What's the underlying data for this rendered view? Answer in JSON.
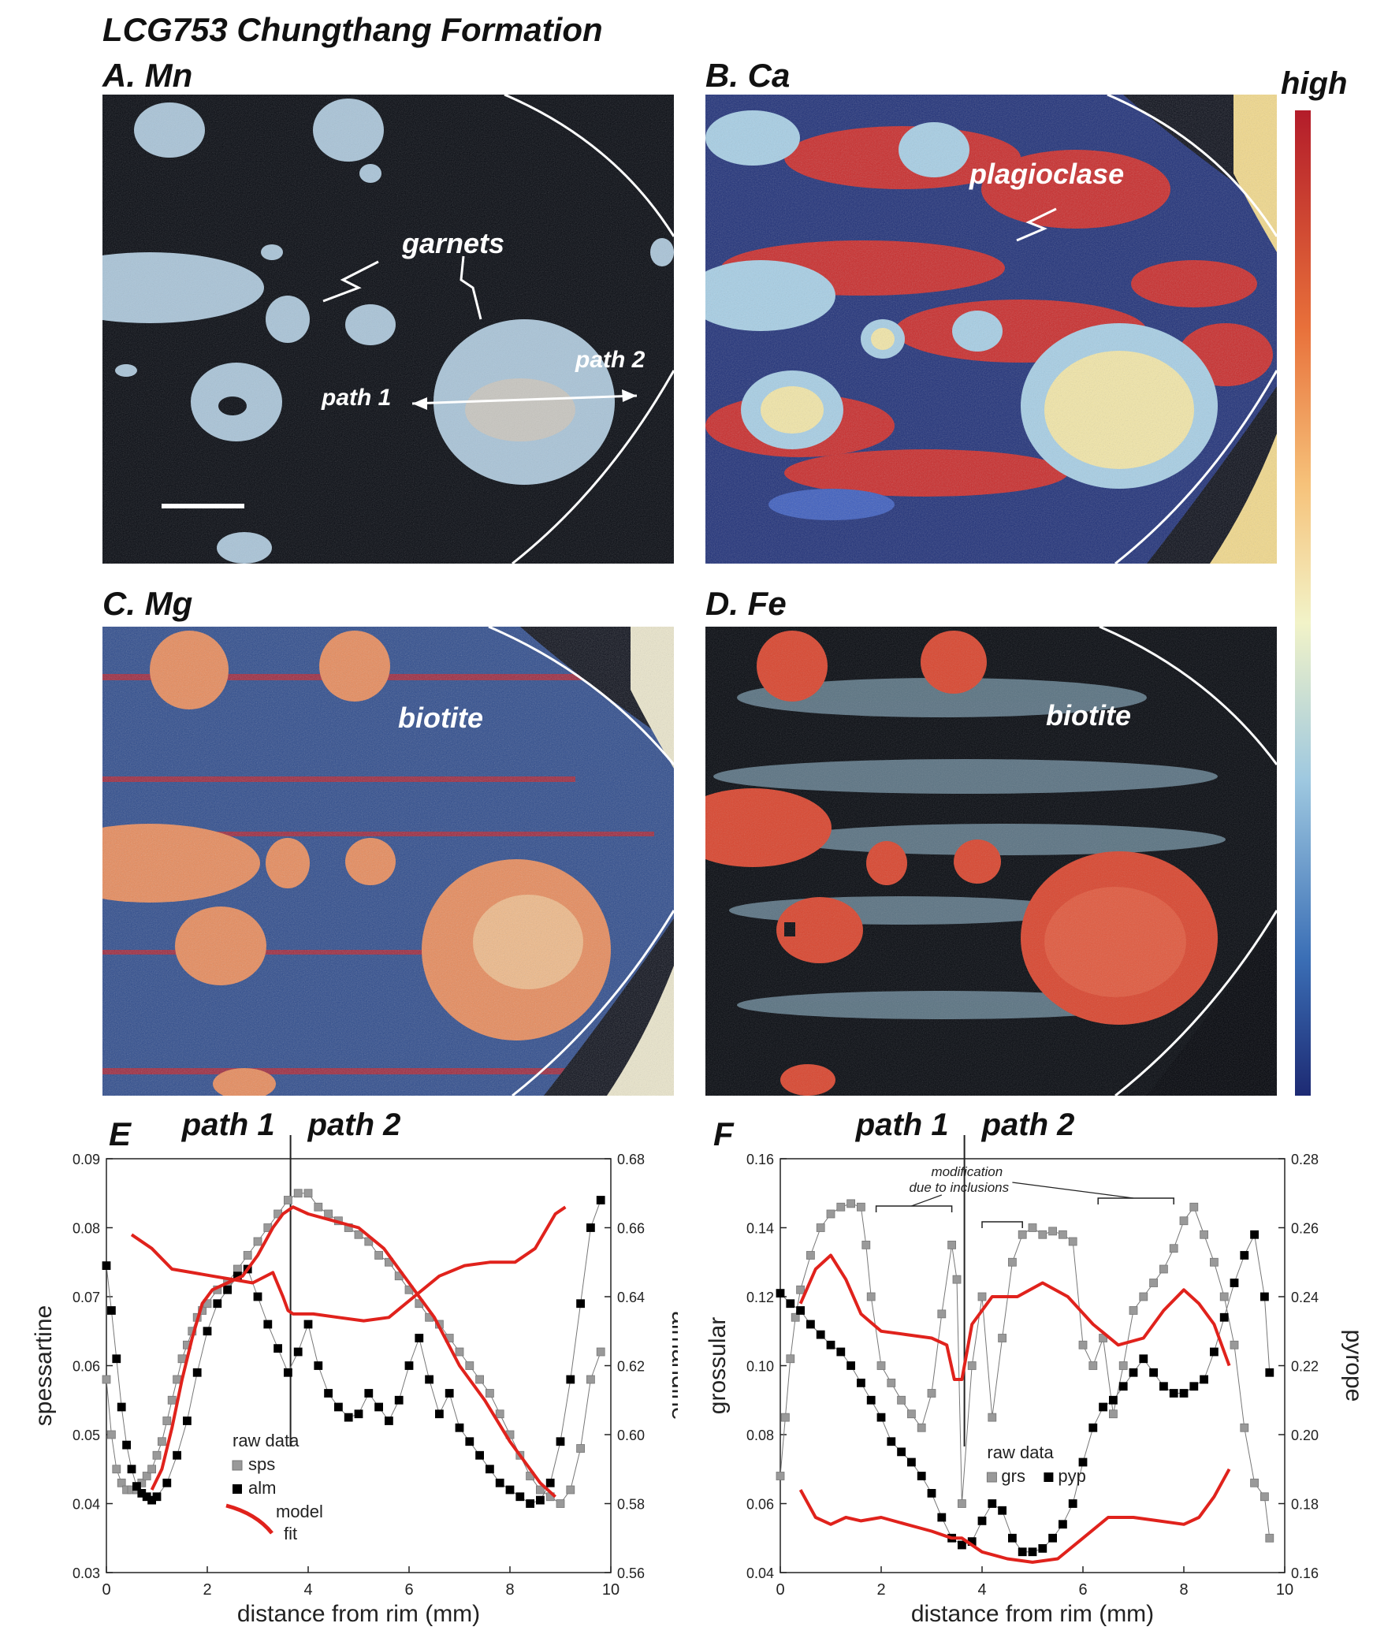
{
  "figure_title": "LCG753 Chungthang Formation",
  "panels": {
    "A": {
      "label": "A. Mn",
      "annotations": [
        "garnets",
        "path 1",
        "path 2"
      ]
    },
    "B": {
      "label": "B. Ca",
      "annotations": [
        "plagioclase"
      ]
    },
    "C": {
      "label": "C.  Mg",
      "annotations": [
        "biotite"
      ]
    },
    "D": {
      "label": "D. Fe",
      "annotations": [
        "biotite"
      ]
    },
    "E": {
      "label": "E"
    },
    "F": {
      "label": "F"
    }
  },
  "colorbar": {
    "label": "high",
    "colors": [
      "#1d2a73",
      "#3b6fb6",
      "#9ec8e0",
      "#f2f3c8",
      "#f6c27a",
      "#e8703a",
      "#b31c2a"
    ]
  },
  "colors": {
    "map_dark": "#05080f",
    "map_blue": "#2c4a8c",
    "garnet_light": "#a9c4d8",
    "garnet_red": "#d9452e",
    "model_fit": "#e0221c",
    "sps": "#999999",
    "alm": "#000000"
  },
  "chart_data": [
    {
      "type": "scatter",
      "panel": "E",
      "path_labels": [
        "path 1",
        "path 2"
      ],
      "path_divider_x": 3.65,
      "xlabel": "distance from rim (mm)",
      "ylabel": "spessartine",
      "y2label": "almandine",
      "xlim": [
        0,
        10
      ],
      "ylim": [
        0.03,
        0.09
      ],
      "y2lim": [
        0.56,
        0.68
      ],
      "xticks": [
        "0",
        "2",
        "4",
        "6",
        "8",
        "10"
      ],
      "yticks": [
        "0.03",
        "0.04",
        "0.05",
        "0.06",
        "0.07",
        "0.08",
        "0.09"
      ],
      "y2ticks": [
        "0.56",
        "0.58",
        "0.60",
        "0.62",
        "0.64",
        "0.66",
        "0.68"
      ],
      "legend": {
        "title": "raw data",
        "entries": [
          "sps",
          "alm"
        ],
        "model": [
          "model",
          "fit"
        ]
      },
      "series": [
        {
          "name": "sps",
          "axis": "left",
          "marker": "square",
          "color": "#999999",
          "x": [
            0.0,
            0.1,
            0.2,
            0.3,
            0.4,
            0.5,
            0.6,
            0.7,
            0.8,
            0.9,
            1.0,
            1.1,
            1.2,
            1.3,
            1.4,
            1.5,
            1.6,
            1.7,
            1.8,
            1.9,
            2.0,
            2.2,
            2.4,
            2.6,
            2.8,
            3.0,
            3.2,
            3.4,
            3.6,
            3.8,
            4.0,
            4.2,
            4.4,
            4.6,
            4.8,
            5.0,
            5.2,
            5.4,
            5.6,
            5.8,
            6.0,
            6.2,
            6.4,
            6.6,
            6.8,
            7.0,
            7.2,
            7.4,
            7.6,
            7.8,
            8.0,
            8.2,
            8.4,
            8.6,
            8.8,
            9.0,
            9.2,
            9.4,
            9.6,
            9.8
          ],
          "y": [
            0.058,
            0.05,
            0.045,
            0.043,
            0.042,
            0.042,
            0.042,
            0.043,
            0.044,
            0.045,
            0.047,
            0.049,
            0.052,
            0.055,
            0.058,
            0.061,
            0.063,
            0.065,
            0.067,
            0.068,
            0.069,
            0.071,
            0.072,
            0.074,
            0.076,
            0.078,
            0.08,
            0.082,
            0.084,
            0.085,
            0.085,
            0.083,
            0.082,
            0.081,
            0.08,
            0.079,
            0.078,
            0.076,
            0.075,
            0.073,
            0.071,
            0.069,
            0.067,
            0.066,
            0.064,
            0.062,
            0.06,
            0.058,
            0.056,
            0.053,
            0.05,
            0.047,
            0.044,
            0.042,
            0.041,
            0.04,
            0.042,
            0.048,
            0.058,
            0.062
          ]
        },
        {
          "name": "alm",
          "axis": "right",
          "marker": "square",
          "color": "#000000",
          "x": [
            0.0,
            0.1,
            0.2,
            0.3,
            0.4,
            0.5,
            0.6,
            0.7,
            0.8,
            0.9,
            1.0,
            1.2,
            1.4,
            1.6,
            1.8,
            2.0,
            2.2,
            2.4,
            2.6,
            2.8,
            3.0,
            3.2,
            3.4,
            3.6,
            3.8,
            4.0,
            4.2,
            4.4,
            4.6,
            4.8,
            5.0,
            5.2,
            5.4,
            5.6,
            5.8,
            6.0,
            6.2,
            6.4,
            6.6,
            6.8,
            7.0,
            7.2,
            7.4,
            7.6,
            7.8,
            8.0,
            8.2,
            8.4,
            8.6,
            8.8,
            9.0,
            9.2,
            9.4,
            9.6,
            9.8
          ],
          "y": [
            0.649,
            0.636,
            0.622,
            0.608,
            0.597,
            0.59,
            0.585,
            0.583,
            0.582,
            0.581,
            0.582,
            0.586,
            0.594,
            0.604,
            0.618,
            0.63,
            0.638,
            0.642,
            0.646,
            0.648,
            0.64,
            0.632,
            0.625,
            0.618,
            0.624,
            0.632,
            0.62,
            0.612,
            0.608,
            0.605,
            0.606,
            0.612,
            0.608,
            0.604,
            0.61,
            0.62,
            0.628,
            0.616,
            0.606,
            0.612,
            0.602,
            0.598,
            0.594,
            0.59,
            0.586,
            0.584,
            0.582,
            0.58,
            0.581,
            0.586,
            0.598,
            0.616,
            0.638,
            0.66,
            0.668
          ]
        },
        {
          "name": "model fit sps",
          "axis": "left",
          "type": "line",
          "color": "#e0221c",
          "x": [
            0.9,
            1.1,
            1.3,
            1.5,
            1.7,
            1.9,
            2.1,
            2.4,
            2.7,
            3.0,
            3.3,
            3.5,
            3.7,
            4.0,
            4.5,
            5.0,
            5.5,
            6.0,
            6.5,
            7.0,
            7.5,
            8.0,
            8.3,
            8.6,
            8.9
          ],
          "y": [
            0.042,
            0.045,
            0.051,
            0.058,
            0.064,
            0.069,
            0.071,
            0.072,
            0.073,
            0.076,
            0.08,
            0.082,
            0.083,
            0.082,
            0.081,
            0.08,
            0.077,
            0.072,
            0.067,
            0.06,
            0.055,
            0.049,
            0.046,
            0.043,
            0.041
          ]
        },
        {
          "name": "model fit alm",
          "axis": "right",
          "type": "line",
          "color": "#e0221c",
          "x": [
            0.5,
            0.9,
            1.3,
            1.7,
            2.1,
            2.5,
            2.9,
            3.3,
            3.5,
            3.6,
            3.7,
            4.1,
            4.6,
            5.1,
            5.6,
            6.1,
            6.6,
            7.1,
            7.6,
            8.1,
            8.5,
            8.9,
            9.1
          ],
          "y": [
            0.658,
            0.654,
            0.648,
            0.647,
            0.646,
            0.645,
            0.644,
            0.647,
            0.64,
            0.636,
            0.635,
            0.635,
            0.634,
            0.633,
            0.634,
            0.64,
            0.646,
            0.649,
            0.65,
            0.65,
            0.654,
            0.664,
            0.666
          ]
        }
      ]
    },
    {
      "type": "scatter",
      "panel": "F",
      "path_labels": [
        "path 1",
        "path 2"
      ],
      "path_divider_x": 3.65,
      "xlabel": "distance from rim (mm)",
      "ylabel": "grossular",
      "y2label": "pyrope",
      "xlim": [
        0,
        10
      ],
      "ylim": [
        0.04,
        0.16
      ],
      "y2lim": [
        0.16,
        0.28
      ],
      "xticks": [
        "0",
        "2",
        "4",
        "6",
        "8",
        "10"
      ],
      "yticks": [
        "0.04",
        "0.06",
        "0.08",
        "0.10",
        "0.12",
        "0.14",
        "0.16"
      ],
      "y2ticks": [
        "0.16",
        "0.18",
        "0.20",
        "0.22",
        "0.24",
        "0.26",
        "0.28"
      ],
      "annotation": [
        "modification",
        "due to inclusions"
      ],
      "legend": {
        "title": "raw data",
        "entries": [
          "grs",
          "pyp"
        ]
      },
      "series": [
        {
          "name": "grs",
          "axis": "left",
          "marker": "square",
          "color": "#999999",
          "x": [
            0.0,
            0.1,
            0.2,
            0.3,
            0.4,
            0.6,
            0.8,
            1.0,
            1.2,
            1.4,
            1.6,
            1.7,
            1.8,
            2.0,
            2.2,
            2.4,
            2.6,
            2.8,
            3.0,
            3.2,
            3.4,
            3.5,
            3.6,
            3.8,
            4.0,
            4.2,
            4.4,
            4.6,
            4.8,
            5.0,
            5.2,
            5.4,
            5.6,
            5.8,
            6.0,
            6.2,
            6.4,
            6.6,
            6.8,
            7.0,
            7.2,
            7.4,
            7.6,
            7.8,
            8.0,
            8.2,
            8.4,
            8.6,
            8.8,
            9.0,
            9.2,
            9.4,
            9.6,
            9.7
          ],
          "y": [
            0.068,
            0.085,
            0.102,
            0.114,
            0.122,
            0.132,
            0.14,
            0.144,
            0.146,
            0.147,
            0.146,
            0.135,
            0.12,
            0.1,
            0.095,
            0.09,
            0.086,
            0.082,
            0.092,
            0.115,
            0.135,
            0.125,
            0.06,
            0.1,
            0.12,
            0.085,
            0.108,
            0.13,
            0.138,
            0.14,
            0.138,
            0.139,
            0.138,
            0.136,
            0.106,
            0.1,
            0.108,
            0.086,
            0.1,
            0.116,
            0.12,
            0.124,
            0.128,
            0.134,
            0.142,
            0.146,
            0.138,
            0.13,
            0.12,
            0.106,
            0.082,
            0.066,
            0.062,
            0.05
          ]
        },
        {
          "name": "pyp",
          "axis": "right",
          "marker": "square",
          "color": "#000000",
          "x": [
            0.0,
            0.2,
            0.4,
            0.6,
            0.8,
            1.0,
            1.2,
            1.4,
            1.6,
            1.8,
            2.0,
            2.2,
            2.4,
            2.6,
            2.8,
            3.0,
            3.2,
            3.4,
            3.6,
            3.8,
            4.0,
            4.2,
            4.4,
            4.6,
            4.8,
            5.0,
            5.2,
            5.4,
            5.6,
            5.8,
            6.0,
            6.2,
            6.4,
            6.6,
            6.8,
            7.0,
            7.2,
            7.4,
            7.6,
            7.8,
            8.0,
            8.2,
            8.4,
            8.6,
            8.8,
            9.0,
            9.2,
            9.4,
            9.6,
            9.7
          ],
          "y": [
            0.241,
            0.238,
            0.236,
            0.232,
            0.229,
            0.226,
            0.224,
            0.22,
            0.215,
            0.21,
            0.205,
            0.198,
            0.195,
            0.192,
            0.188,
            0.183,
            0.176,
            0.17,
            0.168,
            0.169,
            0.175,
            0.18,
            0.178,
            0.17,
            0.166,
            0.166,
            0.167,
            0.17,
            0.174,
            0.18,
            0.192,
            0.202,
            0.208,
            0.21,
            0.214,
            0.218,
            0.222,
            0.218,
            0.214,
            0.212,
            0.212,
            0.214,
            0.216,
            0.224,
            0.234,
            0.244,
            0.252,
            0.258,
            0.24,
            0.218
          ]
        },
        {
          "name": "model fit grs",
          "axis": "left",
          "type": "line",
          "color": "#e0221c",
          "x": [
            0.4,
            0.7,
            1.0,
            1.3,
            1.6,
            2.0,
            2.5,
            3.0,
            3.3,
            3.45,
            3.6,
            3.8,
            4.2,
            4.7,
            5.2,
            5.7,
            6.2,
            6.7,
            7.2,
            7.6,
            8.0,
            8.3,
            8.6,
            8.9
          ],
          "y": [
            0.118,
            0.128,
            0.132,
            0.125,
            0.115,
            0.11,
            0.109,
            0.108,
            0.106,
            0.096,
            0.096,
            0.112,
            0.12,
            0.12,
            0.124,
            0.12,
            0.112,
            0.106,
            0.108,
            0.116,
            0.122,
            0.118,
            0.112,
            0.1
          ]
        },
        {
          "name": "model fit pyp",
          "axis": "right",
          "type": "line",
          "color": "#e0221c",
          "x": [
            0.4,
            0.7,
            1.0,
            1.3,
            1.6,
            2.0,
            2.5,
            3.0,
            3.4,
            3.6,
            4.0,
            4.5,
            5.0,
            5.5,
            6.0,
            6.5,
            7.0,
            7.5,
            8.0,
            8.3,
            8.6,
            8.9
          ],
          "y": [
            0.184,
            0.176,
            0.174,
            0.176,
            0.175,
            0.176,
            0.174,
            0.172,
            0.17,
            0.17,
            0.166,
            0.164,
            0.163,
            0.164,
            0.17,
            0.176,
            0.176,
            0.175,
            0.174,
            0.176,
            0.182,
            0.19
          ]
        }
      ]
    }
  ]
}
